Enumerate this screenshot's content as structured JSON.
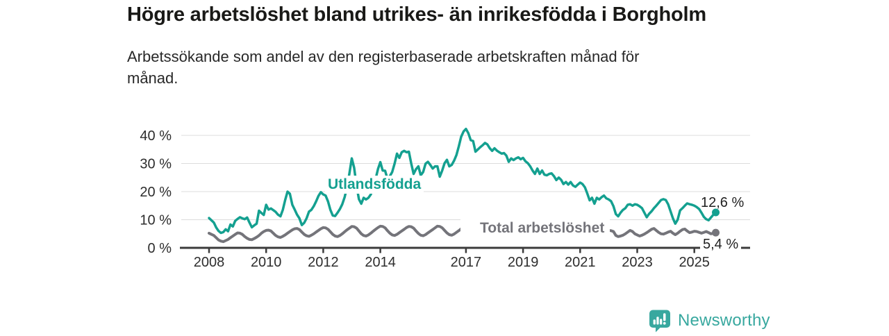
{
  "header": {
    "title": "Högre arbetslöshet bland utrikes- än inrikesfödda i Borgholm",
    "subtitle_line1": "Arbetssökande som andel av den registerbaserade arbetskraften månad för",
    "subtitle_line2": "månad."
  },
  "labels": {
    "series_utlandsfodda": "Utlandsfödda",
    "series_total": "Total arbetslöshet",
    "end_value_utlandsfodda": "12,6 %",
    "end_value_total": "5,4 %"
  },
  "footer": {
    "brand": "Newsworthy",
    "brand_color": "#38a89f",
    "logo_icon": "bar-chart-speech-bubble"
  },
  "chart_data": {
    "type": "line",
    "title": "Högre arbetslöshet bland utrikes- än inrikesfödda i Borgholm",
    "subtitle": "Arbetssökande som andel av den registerbaserade arbetskraften månad för månad.",
    "xlabel": "",
    "ylabel": "",
    "frequency": "monthly",
    "x_start": "2008-01",
    "x_end": "2025-10",
    "xlim_years": [
      2007.7,
      2026.0
    ],
    "ylim": [
      0,
      44
    ],
    "grid": true,
    "gridline_color": "#dcdcdc",
    "axis_color": "#3b3b3b",
    "tick_label_color": "#2d2d2d",
    "x_tick_years": [
      2008,
      2010,
      2012,
      2014,
      2017,
      2019,
      2021,
      2023,
      2025
    ],
    "x_tick_labels": [
      "2008",
      "2010",
      "2012",
      "2014",
      "2017",
      "2019",
      "2021",
      "2023",
      "2025"
    ],
    "y_tick_values": [
      0,
      10,
      20,
      30,
      40
    ],
    "y_tick_labels": [
      "0 %",
      "10 %",
      "20 %",
      "30 %",
      "40 %"
    ],
    "legend_position": "inline-labels",
    "series": [
      {
        "name": "Utlandsfödda",
        "color": "#14a090",
        "stroke_width": 3.5,
        "end_dot": true,
        "end_label": "12,6 %",
        "last_value": 12.6,
        "values": [
          10.6,
          9.8,
          9.0,
          7.2,
          6.0,
          5.3,
          5.6,
          6.6,
          5.9,
          8.3,
          7.6,
          9.6,
          10.3,
          10.9,
          10.5,
          10.2,
          10.8,
          9.0,
          7.3,
          8.0,
          8.6,
          13.2,
          12.4,
          11.7,
          15.3,
          13.6,
          14.0,
          13.4,
          12.8,
          11.8,
          11.2,
          13.5,
          17.0,
          20.0,
          19.2,
          15.3,
          13.6,
          11.8,
          10.5,
          8.1,
          8.9,
          10.5,
          12.9,
          13.5,
          14.8,
          16.5,
          18.5,
          19.8,
          19.0,
          18.6,
          16.5,
          13.5,
          11.5,
          11.3,
          12.5,
          13.8,
          15.5,
          18.0,
          21.5,
          26.5,
          31.8,
          28.5,
          22.0,
          17.3,
          15.7,
          17.8,
          17.2,
          17.8,
          19.0,
          21.5,
          24.5,
          28.0,
          30.5,
          27.5,
          27.4,
          24.5,
          25.5,
          27.0,
          30.0,
          33.5,
          32.0,
          34.0,
          34.5,
          34.0,
          34.2,
          30.0,
          26.3,
          28.0,
          29.0,
          25.8,
          27.0,
          29.9,
          30.6,
          29.5,
          28.2,
          29.0,
          29.0,
          25.3,
          27.5,
          30.1,
          31.3,
          29.0,
          29.5,
          31.0,
          33.0,
          36.1,
          39.5,
          41.4,
          42.3,
          40.8,
          38.3,
          38.0,
          34.2,
          35.0,
          35.8,
          36.5,
          37.3,
          36.8,
          35.4,
          34.5,
          35.4,
          34.6,
          34.0,
          33.5,
          33.7,
          32.8,
          30.6,
          31.8,
          31.2,
          31.8,
          32.2,
          31.5,
          32.0,
          30.8,
          30.1,
          29.0,
          27.5,
          26.3,
          28.2,
          26.3,
          27.5,
          26.0,
          25.8,
          26.3,
          26.5,
          25.5,
          24.1,
          25.0,
          24.2,
          22.7,
          23.4,
          22.5,
          23.4,
          22.2,
          21.7,
          22.5,
          23.2,
          22.7,
          21.5,
          19.3,
          16.9,
          17.8,
          15.7,
          17.8,
          17.2,
          18.0,
          18.6,
          17.6,
          17.2,
          16.6,
          14.8,
          12.0,
          11.2,
          12.5,
          13.5,
          14.1,
          15.3,
          15.5,
          15.0,
          15.5,
          15.3,
          14.8,
          14.1,
          12.5,
          10.9,
          12.1,
          13.0,
          14.1,
          15.0,
          16.0,
          17.0,
          17.3,
          17.0,
          15.5,
          13.0,
          10.5,
          8.6,
          10.0,
          13.3,
          14.1,
          15.0,
          15.8,
          15.5,
          15.3,
          15.0,
          14.5,
          13.8,
          12.5,
          11.0,
          10.2,
          9.8,
          10.8,
          11.8,
          12.6
        ]
      },
      {
        "name": "Total arbetslöshet",
        "color": "#74747a",
        "stroke_width": 4,
        "end_dot": true,
        "end_label": "5,4 %",
        "last_value": 5.4,
        "values": [
          5.2,
          4.8,
          4.4,
          3.6,
          2.8,
          2.4,
          2.2,
          2.6,
          3.0,
          3.6,
          4.2,
          4.8,
          5.3,
          5.2,
          4.8,
          4.0,
          3.4,
          3.0,
          2.9,
          3.3,
          3.8,
          4.4,
          5.2,
          5.8,
          6.2,
          6.3,
          6.0,
          5.2,
          4.4,
          3.9,
          3.7,
          4.1,
          4.6,
          5.2,
          5.8,
          6.4,
          6.8,
          6.9,
          6.5,
          5.6,
          4.8,
          4.3,
          4.1,
          4.5,
          5.0,
          5.6,
          6.2,
          6.8,
          7.2,
          7.1,
          6.6,
          5.7,
          4.8,
          4.2,
          4.0,
          4.4,
          5.0,
          5.7,
          6.4,
          7.0,
          7.6,
          7.5,
          7.0,
          6.0,
          5.0,
          4.4,
          4.2,
          4.6,
          5.2,
          5.9,
          6.6,
          7.2,
          7.7,
          7.6,
          7.1,
          6.1,
          5.2,
          4.6,
          4.4,
          4.8,
          5.4,
          6.0,
          6.6,
          7.2,
          7.6,
          7.5,
          7.0,
          6.0,
          5.1,
          4.5,
          4.3,
          4.7,
          5.3,
          5.9,
          6.5,
          7.1,
          7.7,
          7.6,
          7.1,
          6.2,
          5.3,
          4.7,
          4.5,
          4.9,
          5.5,
          6.1,
          6.8,
          7.5,
          8.2,
          8.3,
          7.8,
          6.8,
          5.8,
          5.1,
          4.8,
          5.2,
          5.7,
          6.2,
          6.8,
          7.3,
          7.6,
          7.5,
          7.0,
          6.1,
          5.3,
          4.8,
          4.6,
          5.0,
          5.5,
          6.0,
          6.5,
          7.0,
          7.3,
          7.2,
          6.8,
          6.0,
          5.3,
          4.9,
          4.8,
          5.2,
          5.6,
          6.0,
          6.4,
          6.8,
          7.1,
          7.0,
          6.8,
          7.2,
          7.0,
          6.6,
          6.2,
          6.4,
          6.2,
          6.0,
          6.2,
          6.6,
          7.0,
          6.9,
          6.6,
          6.0,
          5.4,
          4.9,
          4.6,
          4.8,
          5.0,
          5.3,
          5.6,
          6.0,
          6.2,
          6.1,
          5.8,
          4.4,
          4.0,
          4.2,
          4.5,
          5.0,
          5.6,
          6.2,
          5.8,
          5.0,
          4.6,
          4.2,
          4.5,
          4.9,
          5.4,
          6.0,
          6.6,
          6.9,
          6.2,
          5.5,
          5.0,
          4.9,
          5.2,
          5.6,
          5.9,
          5.2,
          4.7,
          5.2,
          5.9,
          6.5,
          6.7,
          6.0,
          5.4,
          5.6,
          5.9,
          5.8,
          5.5,
          5.2,
          5.5,
          5.8,
          5.4,
          5.0,
          5.2,
          5.4
        ]
      }
    ]
  }
}
